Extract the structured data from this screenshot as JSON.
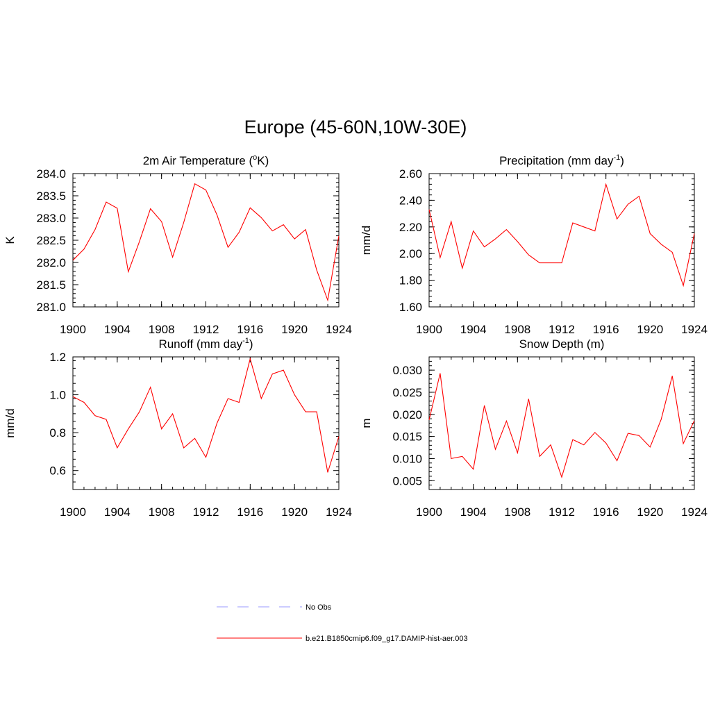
{
  "figure": {
    "title": "Europe (45-60N,10W-30E)"
  },
  "legend": {
    "entries": [
      {
        "label": "No Obs",
        "color": "#9999ff",
        "dash": true
      },
      {
        "label": "b.e21.B1850cmip6.f09_g17.DAMIP-hist-aer.003",
        "color": "#ff0000",
        "dash": false
      }
    ]
  },
  "colors": {
    "series": "#ff0000",
    "frame": "#000000"
  },
  "chart_data": [
    {
      "type": "line",
      "title": "2m Air Temperature (",
      "title_sup": "o",
      "title_after": "K)",
      "ylabel": "K",
      "xlim": [
        1900,
        1924
      ],
      "ylim": [
        281.0,
        284.0
      ],
      "xticks": [
        1900,
        1904,
        1908,
        1912,
        1916,
        1920,
        1924
      ],
      "yticks": [
        281.0,
        281.5,
        282.0,
        282.5,
        283.0,
        283.5,
        284.0
      ],
      "ytick_labels": [
        "281.0",
        "281.5",
        "282.0",
        "282.5",
        "283.0",
        "283.5",
        "284.0"
      ],
      "x": [
        1900,
        1901,
        1902,
        1903,
        1904,
        1905,
        1906,
        1907,
        1908,
        1909,
        1910,
        1911,
        1912,
        1913,
        1914,
        1915,
        1916,
        1917,
        1918,
        1919,
        1920,
        1921,
        1922,
        1923,
        1924
      ],
      "series": [
        {
          "values": [
            282.05,
            282.3,
            282.74,
            283.36,
            283.22,
            281.79,
            282.47,
            283.21,
            282.92,
            282.12,
            282.9,
            283.77,
            283.63,
            283.07,
            282.34,
            282.68,
            283.23,
            283.01,
            282.71,
            282.85,
            282.53,
            282.74,
            281.83,
            281.15,
            282.6
          ]
        }
      ]
    },
    {
      "type": "line",
      "title": "Precipitation (mm day",
      "title_sup": "-1",
      "title_after": ")",
      "ylabel": "mm/d",
      "xlim": [
        1900,
        1924
      ],
      "ylim": [
        1.6,
        2.6
      ],
      "xticks": [
        1900,
        1904,
        1908,
        1912,
        1916,
        1920,
        1924
      ],
      "yticks": [
        1.6,
        1.8,
        2.0,
        2.2,
        2.4,
        2.6
      ],
      "ytick_labels": [
        "1.60",
        "1.80",
        "2.00",
        "2.20",
        "2.40",
        "2.60"
      ],
      "x": [
        1900,
        1901,
        1902,
        1903,
        1904,
        1905,
        1906,
        1907,
        1908,
        1909,
        1910,
        1911,
        1912,
        1913,
        1914,
        1915,
        1916,
        1917,
        1918,
        1919,
        1920,
        1921,
        1922,
        1923,
        1924
      ],
      "series": [
        {
          "values": [
            2.33,
            1.97,
            2.24,
            1.89,
            2.17,
            2.05,
            2.11,
            2.18,
            2.09,
            1.99,
            1.93,
            1.93,
            1.93,
            2.23,
            2.2,
            2.17,
            2.52,
            2.26,
            2.37,
            2.43,
            2.15,
            2.07,
            2.01,
            1.76,
            2.15
          ]
        }
      ]
    },
    {
      "type": "line",
      "title": "Runoff (mm day",
      "title_sup": "-1",
      "title_after": ")",
      "ylabel": "mm/d",
      "xlim": [
        1900,
        1924
      ],
      "ylim": [
        0.5,
        1.2
      ],
      "xticks": [
        1900,
        1904,
        1908,
        1912,
        1916,
        1920,
        1924
      ],
      "yticks": [
        0.6,
        0.8,
        1.0,
        1.2
      ],
      "ytick_labels": [
        "0.6",
        "0.8",
        "1.0",
        "1.2"
      ],
      "x": [
        1900,
        1901,
        1902,
        1903,
        1904,
        1905,
        1906,
        1907,
        1908,
        1909,
        1910,
        1911,
        1912,
        1913,
        1914,
        1915,
        1916,
        1917,
        1918,
        1919,
        1920,
        1921,
        1922,
        1923,
        1924
      ],
      "series": [
        {
          "values": [
            0.99,
            0.96,
            0.89,
            0.87,
            0.72,
            0.82,
            0.91,
            1.04,
            0.82,
            0.9,
            0.72,
            0.77,
            0.67,
            0.85,
            0.98,
            0.96,
            1.19,
            0.98,
            1.11,
            1.13,
            1.0,
            0.91,
            0.91,
            0.59,
            0.78
          ]
        }
      ]
    },
    {
      "type": "line",
      "title": "Snow Depth (m)",
      "title_sup": "",
      "title_after": "",
      "ylabel": "m",
      "xlim": [
        1900,
        1924
      ],
      "ylim": [
        0.003,
        0.033
      ],
      "xticks": [
        1900,
        1904,
        1908,
        1912,
        1916,
        1920,
        1924
      ],
      "yticks": [
        0.005,
        0.01,
        0.015,
        0.02,
        0.025,
        0.03
      ],
      "ytick_labels": [
        "0.005",
        "0.010",
        "0.015",
        "0.020",
        "0.025",
        "0.030"
      ],
      "x": [
        1900,
        1901,
        1902,
        1903,
        1904,
        1905,
        1906,
        1907,
        1908,
        1909,
        1910,
        1911,
        1912,
        1913,
        1914,
        1915,
        1916,
        1917,
        1918,
        1919,
        1920,
        1921,
        1922,
        1923,
        1924
      ],
      "series": [
        {
          "values": [
            0.0187,
            0.0293,
            0.01,
            0.0105,
            0.0076,
            0.022,
            0.0121,
            0.0185,
            0.0113,
            0.0235,
            0.0105,
            0.0131,
            0.0058,
            0.0143,
            0.0131,
            0.0159,
            0.0135,
            0.0095,
            0.0157,
            0.0152,
            0.0126,
            0.0189,
            0.0287,
            0.0134,
            0.0186
          ]
        }
      ]
    }
  ]
}
